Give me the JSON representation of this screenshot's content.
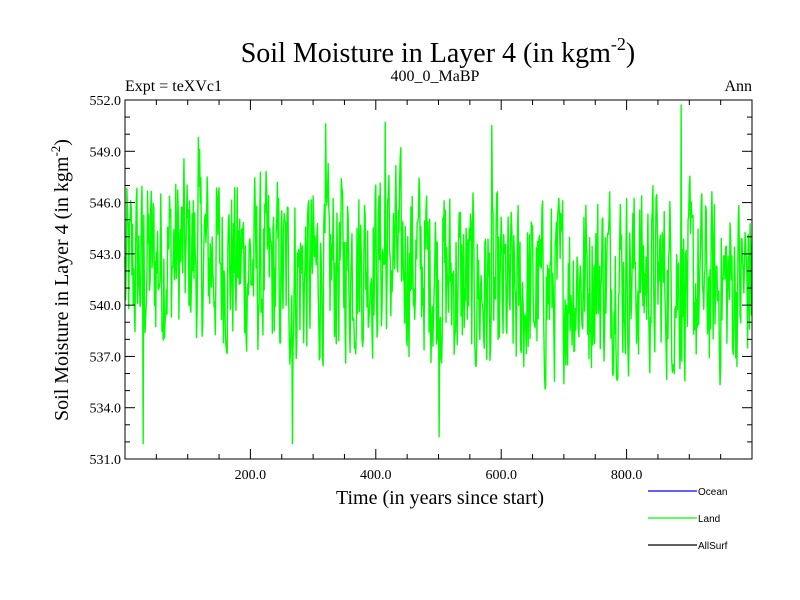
{
  "chart_data": {
    "type": "line",
    "title": "Soil Moisture in Layer 4 (in kgm",
    "title_sup": "-2",
    "title_close": ")",
    "left_label": "Expt = teXVc1",
    "center_label": "400_0_MaBP",
    "right_label": "Ann",
    "xlabel": "Time (in years since start)",
    "ylabel": "Soil Moisture in Layer 4 (in kgm",
    "ylabel_sup": "-2",
    "ylabel_close": ")",
    "xlim": [
      0,
      1000
    ],
    "ylim": [
      531.0,
      552.0
    ],
    "x_ticks": [
      200,
      400,
      600,
      800
    ],
    "x_tick_labels": [
      "200.0",
      "400.0",
      "600.0",
      "800.0"
    ],
    "y_ticks": [
      531,
      534,
      537,
      540,
      543,
      546,
      549,
      552
    ],
    "y_tick_labels": [
      "531.0",
      "534.0",
      "537.0",
      "540.0",
      "543.0",
      "546.0",
      "549.0",
      "552.0"
    ],
    "series": [
      {
        "name": "Ocean",
        "color": "#0000ff",
        "values": []
      },
      {
        "name": "Land",
        "color": "#00ff00",
        "x_start": 0,
        "x_step": 1,
        "values": []
      },
      {
        "name": "AllSurf",
        "color": "#000000",
        "values": []
      }
    ],
    "legend": [
      "Ocean",
      "Land",
      "AllSurf"
    ],
    "legend_position": "bottom-right"
  }
}
